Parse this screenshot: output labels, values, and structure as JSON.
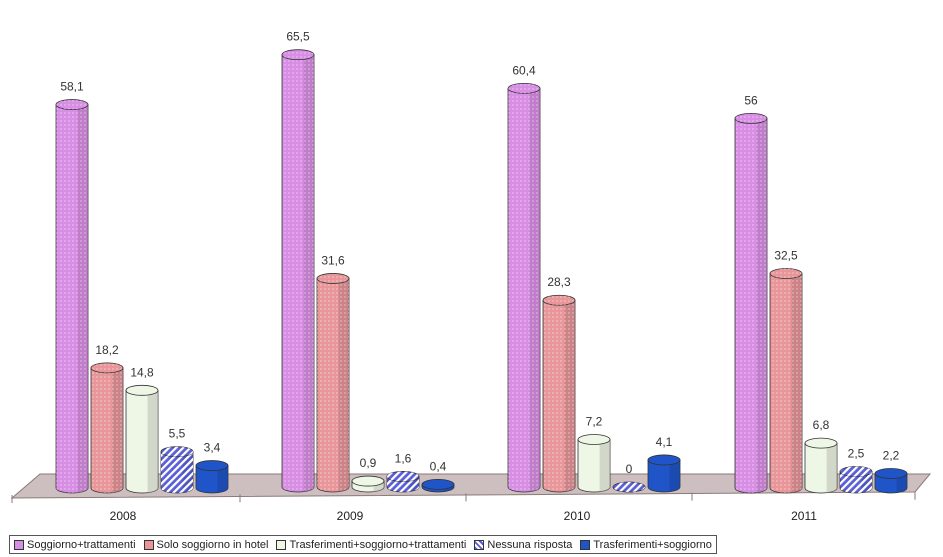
{
  "chart_data": {
    "type": "bar",
    "categories": [
      "2008",
      "2009",
      "2010",
      "2011"
    ],
    "series": [
      {
        "name": "Soggiorno+trattamenti",
        "values": [
          58.1,
          65.5,
          60.4,
          56
        ],
        "labels": [
          "58,1",
          "65,5",
          "60,4",
          "56"
        ],
        "color": "#d98ee6"
      },
      {
        "name": "Solo soggiorno in hotel",
        "values": [
          18.2,
          31.6,
          28.3,
          32.5
        ],
        "labels": [
          "18,2",
          "31,6",
          "28,3",
          "32,5"
        ],
        "color": "#e8969a"
      },
      {
        "name": "Trasferimenti+soggiorno+trattamenti",
        "values": [
          14.8,
          0.9,
          7.2,
          6.8
        ],
        "labels": [
          "14,8",
          "0,9",
          "7,2",
          "6,8"
        ],
        "color": "#eef6e6"
      },
      {
        "name": "Nessuna risposta",
        "values": [
          5.5,
          1.6,
          0,
          2.5
        ],
        "labels": [
          "5,5",
          "1,6",
          "0",
          "2,5"
        ],
        "color": "#5a5fd8"
      },
      {
        "name": "Trasferimenti+soggiorno",
        "values": [
          3.4,
          0.4,
          4.1,
          2.2
        ],
        "labels": [
          "3,4",
          "0,4",
          "4,1",
          "2,2"
        ],
        "color": "#1f55c8"
      }
    ],
    "ylim": [
      0,
      70
    ],
    "grid": false,
    "legend_position": "bottom",
    "style": "3d-cylinder"
  }
}
